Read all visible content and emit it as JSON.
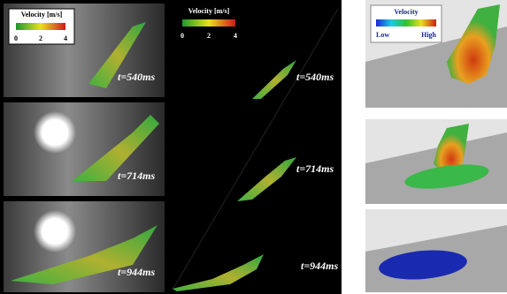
{
  "left_panel": {
    "legend": {
      "title": "Velocity [m/s]",
      "ticks": [
        0,
        2,
        4
      ]
    },
    "frames": [
      {
        "time": "t=540ms"
      },
      {
        "time": "t=714ms"
      },
      {
        "time": "t=944ms"
      }
    ]
  },
  "middle_panel": {
    "legend": {
      "title": "Velocity [m/s]",
      "ticks": [
        0,
        2,
        4
      ]
    },
    "frames": [
      {
        "time": "t=540ms"
      },
      {
        "time": "t=714ms"
      },
      {
        "time": "t=944ms"
      }
    ]
  },
  "right_panel": {
    "legend": {
      "title": "Velocity",
      "low": "Low",
      "high": "High"
    }
  }
}
